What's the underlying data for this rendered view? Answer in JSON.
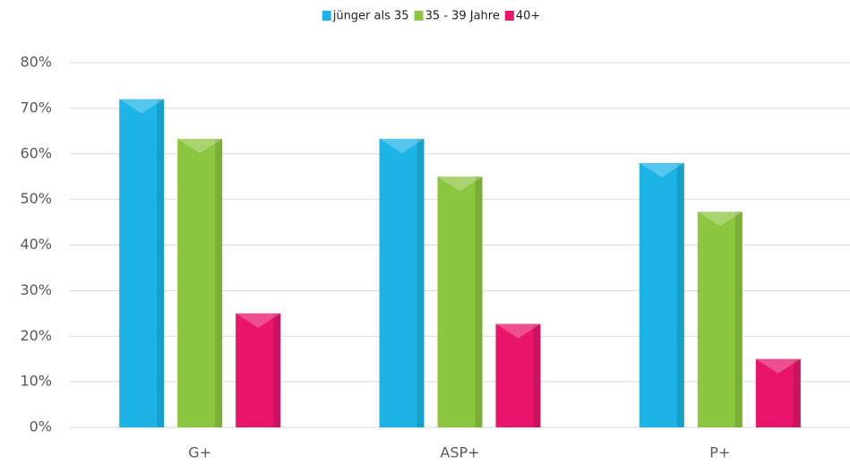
{
  "chart_data": {
    "type": "bar",
    "categories": [
      "G+",
      "ASP+",
      "P+"
    ],
    "series": [
      {
        "name": "jünger als 35",
        "color": "#1cb4e6",
        "values": [
          72,
          63.3,
          58
        ]
      },
      {
        "name": "35 - 39 Jahre",
        "color": "#8cc63f",
        "values": [
          63.3,
          55,
          47.3
        ]
      },
      {
        "name": "40+",
        "color": "#e8156b",
        "values": [
          25,
          22.7,
          15
        ]
      }
    ],
    "ylim": [
      0,
      80
    ],
    "yticks": [
      {
        "value": 0,
        "label": "0%"
      },
      {
        "value": 10,
        "label": "10%"
      },
      {
        "value": 20,
        "label": "20%"
      },
      {
        "value": 30,
        "label": "30%"
      },
      {
        "value": 40,
        "label": "40%"
      },
      {
        "value": 50,
        "label": "50%"
      },
      {
        "value": 60,
        "label": "60%"
      },
      {
        "value": 70,
        "label": "70%"
      },
      {
        "value": 80,
        "label": "80%"
      }
    ],
    "grid": true,
    "legend": "top"
  }
}
